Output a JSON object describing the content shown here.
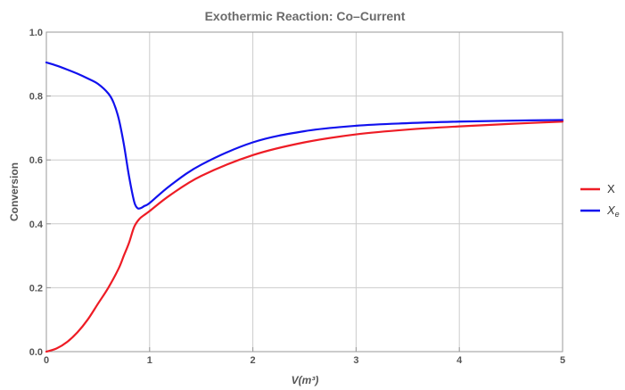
{
  "chart_data": {
    "type": "line",
    "title": "Exothermic Reaction: Co–Current",
    "xlabel": "V(m³)",
    "ylabel": "Conversion",
    "xlim": [
      0,
      5
    ],
    "ylim": [
      0,
      1.0
    ],
    "x_ticks": [
      "0",
      "1",
      "2",
      "3",
      "4",
      "5"
    ],
    "y_ticks": [
      "0.0",
      "0.2",
      "0.4",
      "0.6",
      "0.8",
      "1.0"
    ],
    "grid": true,
    "legend": "right",
    "series": [
      {
        "name": "X",
        "color": "#ee1c25",
        "x": [
          0,
          0.1,
          0.2,
          0.3,
          0.4,
          0.5,
          0.6,
          0.7,
          0.75,
          0.8,
          0.85,
          0.9,
          0.95,
          1.0,
          1.2,
          1.5,
          2.0,
          2.5,
          3.0,
          3.5,
          4.0,
          4.5,
          5.0
        ],
        "y": [
          0.0,
          0.01,
          0.03,
          0.06,
          0.1,
          0.15,
          0.2,
          0.26,
          0.3,
          0.34,
          0.39,
          0.415,
          0.428,
          0.44,
          0.49,
          0.55,
          0.615,
          0.655,
          0.68,
          0.695,
          0.705,
          0.713,
          0.72
        ]
      },
      {
        "name": "X_e",
        "color": "#1111ee",
        "x": [
          0,
          0.1,
          0.2,
          0.3,
          0.4,
          0.5,
          0.6,
          0.65,
          0.7,
          0.75,
          0.8,
          0.85,
          0.88,
          0.9,
          0.92,
          0.95,
          1.0,
          1.2,
          1.5,
          2.0,
          2.5,
          3.0,
          3.5,
          4.0,
          4.5,
          5.0
        ],
        "y": [
          0.905,
          0.895,
          0.883,
          0.87,
          0.855,
          0.838,
          0.808,
          0.78,
          0.73,
          0.65,
          0.55,
          0.47,
          0.45,
          0.448,
          0.45,
          0.456,
          0.465,
          0.52,
          0.585,
          0.655,
          0.69,
          0.707,
          0.715,
          0.72,
          0.723,
          0.725
        ]
      }
    ]
  }
}
